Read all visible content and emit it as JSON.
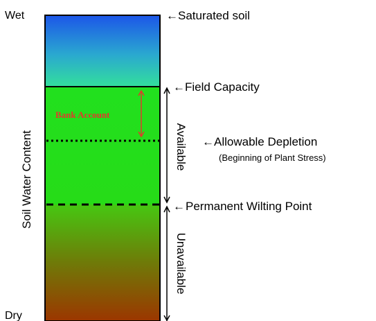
{
  "labels": {
    "wet": "Wet",
    "dry": "Dry",
    "axis_label": "Soil Water Content",
    "saturated": "Saturated soil",
    "field_capacity": "Field Capacity",
    "allowable_depletion": "Allowable Depletion",
    "allowable_depletion_note": "(Beginning of Plant Stress)",
    "permanent_wilting": "Permanent Wilting Point",
    "available": "Available",
    "unavailable": "Unavailable",
    "bank_account": "Bank Account"
  },
  "pointer_glyph": "←",
  "colors": {
    "column_top": "#1e5fe6",
    "column_mid_upper": "#3cd8a8",
    "column_green": "#22e01e",
    "column_bottom": "#9a3a00",
    "bank_account": "#e2392c",
    "line": "#000000"
  }
}
